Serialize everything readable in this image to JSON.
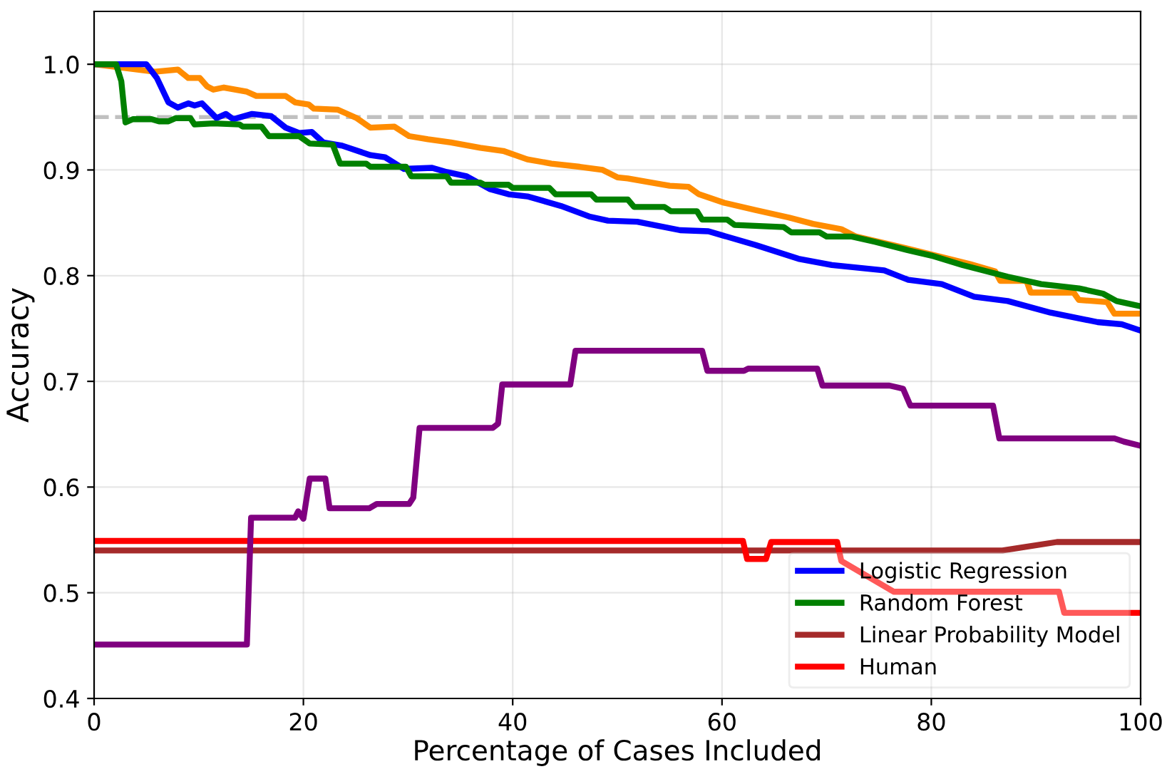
{
  "chart_data": {
    "type": "line",
    "xlabel": "Percentage of Cases Included",
    "ylabel": "Accuracy",
    "xlim": [
      0,
      100
    ],
    "ylim": [
      0.4,
      1.05
    ],
    "xticks": [
      0,
      20,
      40,
      60,
      80,
      100
    ],
    "yticks": [
      {
        "value": 0.4,
        "label": "0.4"
      },
      {
        "value": 0.5,
        "label": "0.5"
      },
      {
        "value": 0.6,
        "label": "0.6"
      },
      {
        "value": 0.7,
        "label": "0.7"
      },
      {
        "value": 0.8,
        "label": "0.8"
      },
      {
        "value": 0.9,
        "label": "0.9"
      },
      {
        "value": 1,
        "label": "1.0"
      }
    ],
    "grid": true,
    "legend": "bottom right",
    "marker": "none",
    "line_style": "solid",
    "ref_lines": [
      {
        "axis": "y",
        "value": 0.95,
        "color": "#c0c0c0",
        "line_style": "dashed"
      }
    ],
    "series": [
      {
        "color": "#ff8c00",
        "x": [
          0,
          5.8,
          8.0,
          9.0,
          10.1,
          10.8,
          11.4,
          12.4,
          14.6,
          15.5,
          18.3,
          19.2,
          20.5,
          21.0,
          23.3,
          25.1,
          26.4,
          28.7,
          30.1,
          31.9,
          34.1,
          36.9,
          39.1,
          41.4,
          43.7,
          46.4,
          48.6,
          50.0,
          51.0,
          55.0,
          56.8,
          57.8,
          60.2,
          63.2,
          66.4,
          68.7,
          71.4,
          72.8,
          76.3,
          80.0,
          83.7,
          86.1,
          86.6,
          89.1,
          89.5,
          93.6,
          94.1,
          96.8,
          97.5,
          100
        ],
        "values": [
          1.0,
          0.993,
          0.995,
          0.987,
          0.987,
          0.979,
          0.976,
          0.978,
          0.974,
          0.97,
          0.97,
          0.964,
          0.962,
          0.958,
          0.957,
          0.949,
          0.94,
          0.941,
          0.932,
          0.929,
          0.926,
          0.921,
          0.918,
          0.91,
          0.906,
          0.903,
          0.9,
          0.893,
          0.892,
          0.885,
          0.884,
          0.877,
          0.869,
          0.862,
          0.855,
          0.849,
          0.844,
          0.837,
          0.829,
          0.82,
          0.811,
          0.804,
          0.795,
          0.795,
          0.784,
          0.784,
          0.777,
          0.775,
          0.764,
          0.764
        ]
      },
      {
        "name": "Logistic Regression",
        "color": "#0000ff",
        "x": [
          0,
          5.0,
          6.0,
          7.1,
          8.0,
          9.0,
          9.6,
          10.3,
          11.7,
          12.6,
          13.3,
          15.1,
          16.9,
          18.3,
          19.6,
          20.8,
          21.9,
          23.7,
          26.4,
          27.8,
          29.6,
          32.3,
          33.7,
          35.6,
          37.8,
          39.6,
          41.4,
          44.6,
          47.3,
          49.1,
          51.9,
          56.0,
          58.7,
          63.2,
          67.3,
          70.5,
          75.5,
          77.8,
          81.0,
          84.1,
          87.3,
          91.4,
          95.9,
          98.2,
          100
        ],
        "values": [
          1.0,
          1.0,
          0.987,
          0.964,
          0.959,
          0.963,
          0.961,
          0.963,
          0.949,
          0.953,
          0.948,
          0.953,
          0.951,
          0.94,
          0.935,
          0.936,
          0.926,
          0.923,
          0.914,
          0.912,
          0.901,
          0.902,
          0.898,
          0.894,
          0.882,
          0.877,
          0.875,
          0.866,
          0.856,
          0.852,
          0.851,
          0.843,
          0.842,
          0.829,
          0.816,
          0.81,
          0.805,
          0.796,
          0.792,
          0.78,
          0.776,
          0.765,
          0.756,
          0.754,
          0.748
        ]
      },
      {
        "name": "Random Forest",
        "color": "#008000",
        "x": [
          0,
          2.1,
          2.6,
          3.0,
          3.7,
          5.5,
          6.2,
          7.1,
          7.8,
          9.2,
          9.6,
          11.4,
          13.9,
          14.2,
          16.0,
          16.7,
          19.6,
          20.6,
          22.8,
          23.5,
          26.0,
          26.4,
          29.8,
          30.3,
          33.7,
          34.1,
          36.9,
          37.3,
          39.6,
          40.0,
          43.5,
          44.1,
          47.5,
          48.0,
          51.0,
          51.6,
          54.5,
          55.1,
          57.6,
          58.1,
          60.5,
          61.2,
          65.9,
          66.6,
          69.3,
          70.0,
          72.4,
          74.6,
          77.8,
          80.0,
          83.0,
          87.3,
          90.5,
          94.1,
          96.4,
          97.7,
          100
        ],
        "values": [
          1.0,
          1.0,
          0.984,
          0.945,
          0.948,
          0.948,
          0.946,
          0.946,
          0.949,
          0.949,
          0.943,
          0.944,
          0.943,
          0.941,
          0.941,
          0.932,
          0.932,
          0.925,
          0.924,
          0.906,
          0.906,
          0.903,
          0.903,
          0.894,
          0.894,
          0.888,
          0.888,
          0.886,
          0.886,
          0.883,
          0.883,
          0.877,
          0.877,
          0.872,
          0.872,
          0.865,
          0.865,
          0.861,
          0.861,
          0.853,
          0.853,
          0.848,
          0.846,
          0.841,
          0.841,
          0.837,
          0.837,
          0.832,
          0.824,
          0.819,
          0.81,
          0.799,
          0.792,
          0.788,
          0.783,
          0.776,
          0.771
        ]
      },
      {
        "name": "Linear Probability Model",
        "color": "#a52a2a",
        "x": [
          0,
          86.8,
          92.0,
          100
        ],
        "values": [
          0.54,
          0.54,
          0.548,
          0.548
        ]
      },
      {
        "name": "Human",
        "color": "#ff0000",
        "x": [
          0,
          62.0,
          62.4,
          64.2,
          64.7,
          71.0,
          71.4,
          76.4,
          92.2,
          92.7,
          100
        ],
        "values": [
          0.549,
          0.549,
          0.532,
          0.532,
          0.548,
          0.548,
          0.53,
          0.501,
          0.501,
          0.481,
          0.481
        ]
      },
      {
        "color": "#800080",
        "x": [
          0,
          14.6,
          15.0,
          19.2,
          19.5,
          20.0,
          20.6,
          22.1,
          22.5,
          26.3,
          27.0,
          30.1,
          30.5,
          31.1,
          38.1,
          38.6,
          39.0,
          45.5,
          46.0,
          58.1,
          58.6,
          62.1,
          62.5,
          69.1,
          69.6,
          76.0,
          76.9,
          77.3,
          78.0,
          85.9,
          86.5,
          97.5,
          98.4,
          100
        ],
        "values": [
          0.451,
          0.451,
          0.571,
          0.571,
          0.577,
          0.57,
          0.608,
          0.608,
          0.58,
          0.58,
          0.584,
          0.584,
          0.59,
          0.656,
          0.656,
          0.66,
          0.697,
          0.697,
          0.729,
          0.729,
          0.71,
          0.71,
          0.712,
          0.712,
          0.696,
          0.696,
          0.694,
          0.693,
          0.677,
          0.677,
          0.646,
          0.646,
          0.643,
          0.639
        ]
      }
    ]
  }
}
